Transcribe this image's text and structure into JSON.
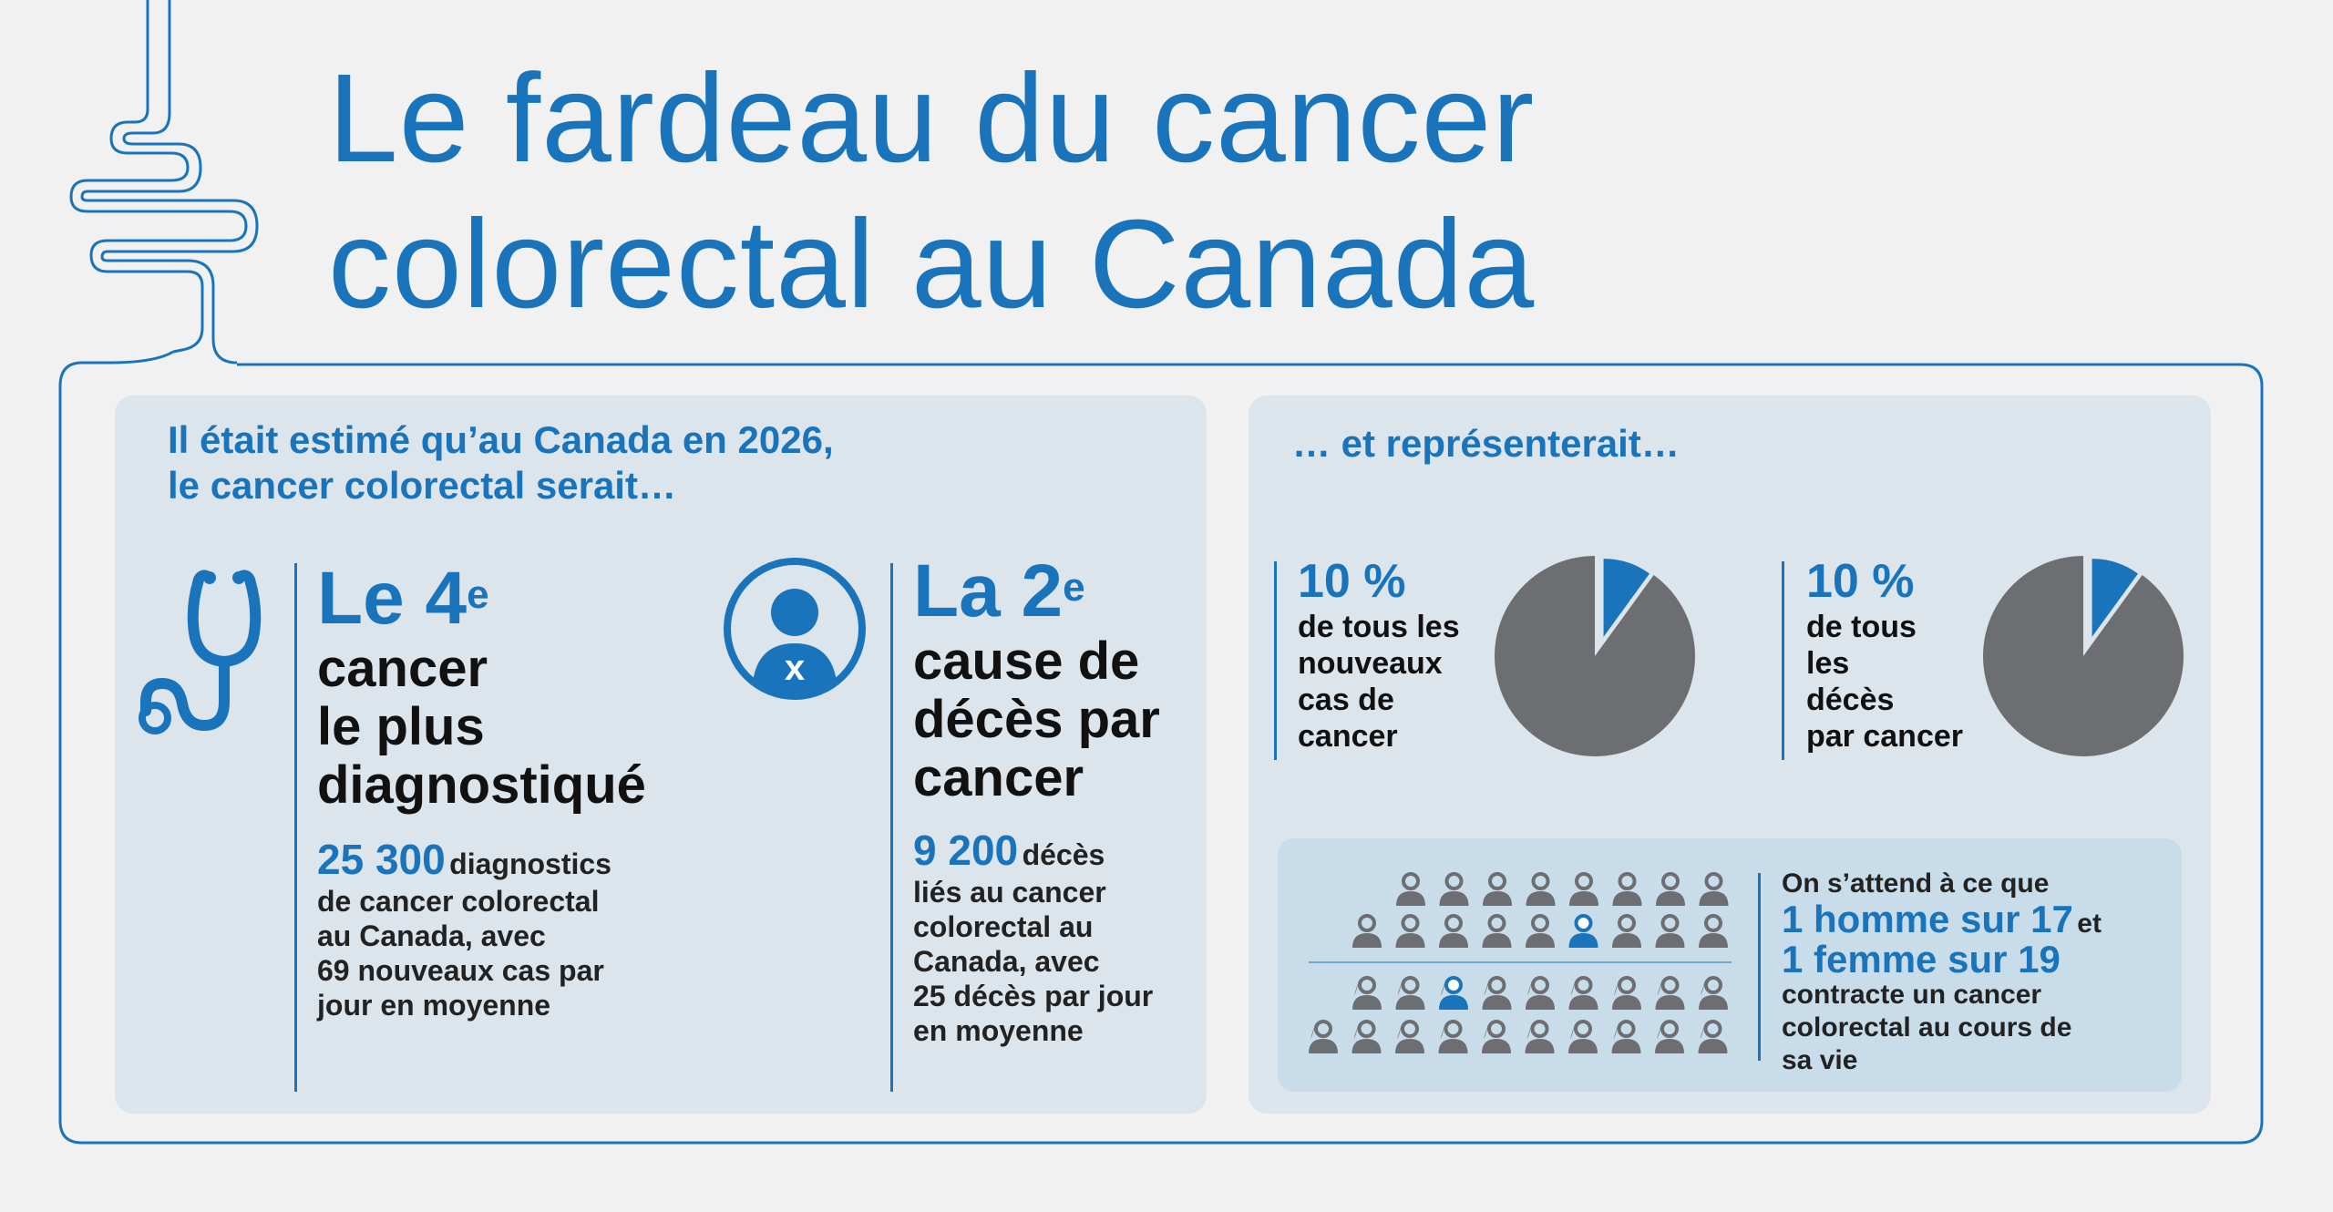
{
  "title": {
    "line1": "Le fardeau du cancer",
    "line2": "colorectal au Canada"
  },
  "colors": {
    "accent": "#1a74bb",
    "panel": "#dce4ec",
    "pie_gray": "#6d6e71",
    "background": "#f0f1f0"
  },
  "left_panel": {
    "intro_line1": "Il était estimé qu’au Canada en 2026,",
    "intro_line2": "le cancer colorectal serait…",
    "card1": {
      "icon": "stethoscope-icon",
      "heading_main": "Le 4",
      "heading_sup": "e",
      "sub_line1": "cancer",
      "sub_line2": "le plus",
      "sub_line3": "diagnostiqué",
      "stat_number": "25 300",
      "stat_word": "diagnostics",
      "stat_line2": "de cancer colorectal",
      "stat_line3": "au Canada, avec",
      "stat_line4": "69 nouveaux cas par",
      "stat_line5": "jour en moyenne"
    },
    "card2": {
      "icon": "person-x-icon",
      "icon_letter": "x",
      "heading_main": "La 2",
      "heading_sup": "e",
      "sub_line1": "cause de",
      "sub_line2": "décès par",
      "sub_line3": "cancer",
      "stat_number": "9 200",
      "stat_word": "décès",
      "stat_line2": "liés au cancer",
      "stat_line3": "colorectal au",
      "stat_line4": "Canada, avec",
      "stat_line5": "25 décès par jour",
      "stat_line6": "en moyenne"
    }
  },
  "right_panel": {
    "intro": "… et représenterait…",
    "pie1": {
      "percent_label": "10 %",
      "fraction": 0.1,
      "line1": "de tous les",
      "line2": "nouveaux",
      "line3": "cas de",
      "line4": "cancer"
    },
    "pie2": {
      "percent_label": "10 %",
      "fraction": 0.1,
      "line1": "de tous",
      "line2": "les",
      "line3": "décès",
      "line4": "par cancer"
    },
    "people": {
      "men_total": 17,
      "men_highlighted": 1,
      "women_total": 19,
      "women_highlighted": 1,
      "line1": "On s’attend à ce que",
      "men_text": "1 homme sur 17",
      "et": "et",
      "women_text": "1 femme sur 19",
      "line3": "contracte un cancer",
      "line4": "colorectal au cours de",
      "line5": "sa vie"
    }
  }
}
